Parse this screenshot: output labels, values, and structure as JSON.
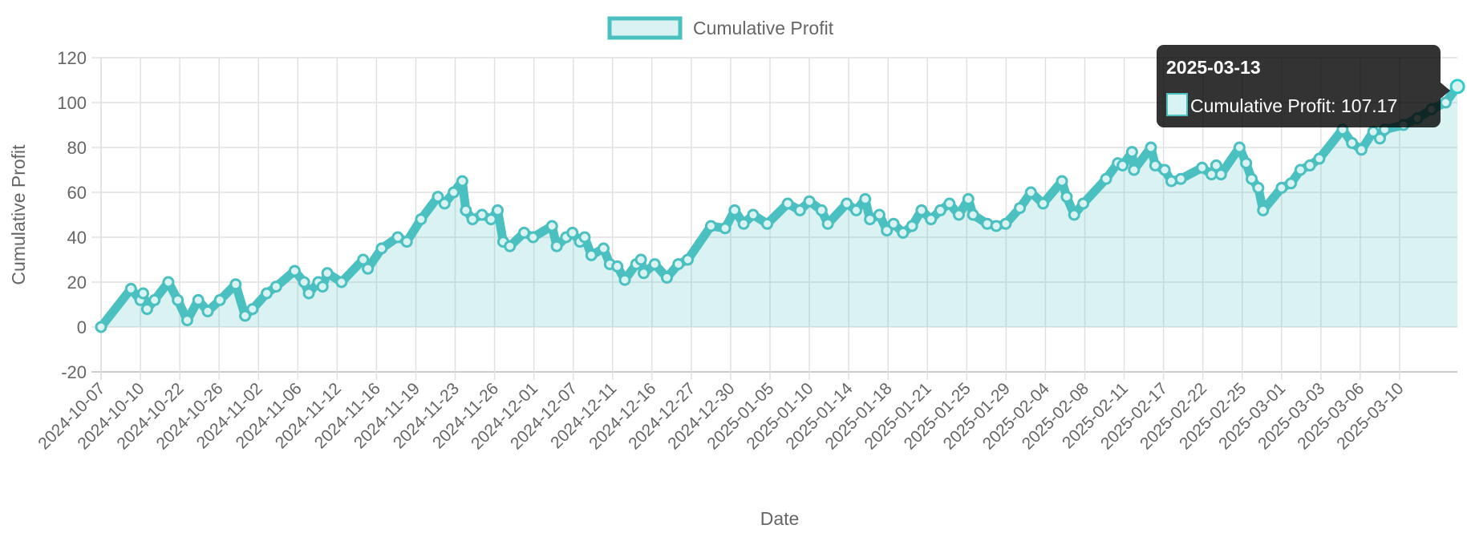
{
  "chart_data": {
    "type": "line",
    "fill": "area",
    "legend": {
      "label": "Cumulative Profit",
      "placement": "top-center"
    },
    "xlabel": "Date",
    "ylabel": "Cumulative Profit",
    "ylim": [
      -20,
      120
    ],
    "yticks": [
      -20,
      0,
      20,
      40,
      60,
      80,
      100,
      120
    ],
    "grid": true,
    "x_tick_labels": [
      "2024-10-07",
      "2024-10-10",
      "2024-10-22",
      "2024-10-26",
      "2024-11-02",
      "2024-11-06",
      "2024-11-12",
      "2024-11-16",
      "2024-11-19",
      "2024-11-23",
      "2024-11-26",
      "2024-12-01",
      "2024-12-07",
      "2024-12-11",
      "2024-12-16",
      "2024-12-27",
      "2024-12-30",
      "2025-01-05",
      "2025-01-10",
      "2025-01-14",
      "2025-01-18",
      "2025-01-21",
      "2025-01-25",
      "2025-01-29",
      "2025-02-04",
      "2025-02-08",
      "2025-02-11",
      "2025-02-17",
      "2025-02-22",
      "2025-02-25",
      "2025-03-01",
      "2025-03-03",
      "2025-03-06",
      "2025-03-10"
    ],
    "series": [
      {
        "name": "Cumulative Profit",
        "color": "#4bc0c0",
        "fill_color": "rgba(75,192,192,0.2)",
        "points_tick_index_value": [
          [
            0,
            0
          ],
          [
            0.76,
            17
          ],
          [
            1.0,
            12
          ],
          [
            1.07,
            15
          ],
          [
            1.17,
            8
          ],
          [
            1.36,
            12
          ],
          [
            1.71,
            20
          ],
          [
            1.95,
            12
          ],
          [
            2.19,
            3
          ],
          [
            2.47,
            12
          ],
          [
            2.71,
            7
          ],
          [
            3.02,
            12
          ],
          [
            3.42,
            19
          ],
          [
            3.66,
            5
          ],
          [
            3.85,
            8
          ],
          [
            4.21,
            15
          ],
          [
            4.45,
            18
          ],
          [
            4.92,
            25
          ],
          [
            5.16,
            20
          ],
          [
            5.28,
            15
          ],
          [
            5.52,
            20
          ],
          [
            5.63,
            18
          ],
          [
            5.75,
            24
          ],
          [
            6.11,
            20
          ],
          [
            6.66,
            30
          ],
          [
            6.78,
            26
          ],
          [
            7.13,
            35
          ],
          [
            7.54,
            40
          ],
          [
            7.77,
            38
          ],
          [
            8.13,
            48
          ],
          [
            8.56,
            58
          ],
          [
            8.73,
            55
          ],
          [
            8.96,
            60
          ],
          [
            9.18,
            65
          ],
          [
            9.27,
            52
          ],
          [
            9.44,
            48
          ],
          [
            9.68,
            50
          ],
          [
            9.91,
            48
          ],
          [
            10.08,
            52
          ],
          [
            10.22,
            38
          ],
          [
            10.39,
            36
          ],
          [
            10.75,
            42
          ],
          [
            10.98,
            40
          ],
          [
            11.46,
            45
          ],
          [
            11.58,
            36
          ],
          [
            11.82,
            40
          ],
          [
            11.98,
            42
          ],
          [
            12.17,
            38
          ],
          [
            12.29,
            40
          ],
          [
            12.46,
            32
          ],
          [
            12.77,
            35
          ],
          [
            12.93,
            28
          ],
          [
            13.12,
            27
          ],
          [
            13.31,
            21
          ],
          [
            13.6,
            28
          ],
          [
            13.72,
            30
          ],
          [
            13.79,
            24
          ],
          [
            14.07,
            28
          ],
          [
            14.38,
            22
          ],
          [
            14.67,
            28
          ],
          [
            14.91,
            30
          ],
          [
            15.5,
            45
          ],
          [
            15.86,
            44
          ],
          [
            16.1,
            52
          ],
          [
            16.33,
            46
          ],
          [
            16.57,
            50
          ],
          [
            16.93,
            46
          ],
          [
            17.45,
            55
          ],
          [
            17.76,
            52
          ],
          [
            18.0,
            56
          ],
          [
            18.31,
            52
          ],
          [
            18.47,
            46
          ],
          [
            18.95,
            55
          ],
          [
            19.19,
            52
          ],
          [
            19.42,
            57
          ],
          [
            19.54,
            48
          ],
          [
            19.78,
            50
          ],
          [
            19.97,
            43
          ],
          [
            20.14,
            46
          ],
          [
            20.38,
            42
          ],
          [
            20.61,
            45
          ],
          [
            20.85,
            52
          ],
          [
            21.09,
            48
          ],
          [
            21.33,
            52
          ],
          [
            21.56,
            55
          ],
          [
            21.8,
            50
          ],
          [
            22.04,
            57
          ],
          [
            22.16,
            50
          ],
          [
            22.52,
            46
          ],
          [
            22.75,
            45
          ],
          [
            22.99,
            46
          ],
          [
            23.35,
            53
          ],
          [
            23.63,
            60
          ],
          [
            23.94,
            55
          ],
          [
            24.42,
            65
          ],
          [
            24.54,
            58
          ],
          [
            24.73,
            50
          ],
          [
            24.96,
            55
          ],
          [
            25.54,
            66
          ],
          [
            25.84,
            73
          ],
          [
            25.96,
            72
          ],
          [
            26.2,
            78
          ],
          [
            26.25,
            70
          ],
          [
            26.68,
            80
          ],
          [
            26.79,
            72
          ],
          [
            27.03,
            70
          ],
          [
            27.2,
            65
          ],
          [
            27.44,
            66
          ],
          [
            27.98,
            71
          ],
          [
            28.22,
            68
          ],
          [
            28.34,
            72
          ],
          [
            28.46,
            68
          ],
          [
            28.93,
            80
          ],
          [
            29.1,
            73
          ],
          [
            29.24,
            66
          ],
          [
            29.41,
            62
          ],
          [
            29.53,
            52
          ],
          [
            30.0,
            62
          ],
          [
            30.24,
            64
          ],
          [
            30.48,
            70
          ],
          [
            30.72,
            72
          ],
          [
            30.96,
            75
          ],
          [
            31.55,
            88
          ],
          [
            31.79,
            82
          ],
          [
            32.03,
            79
          ],
          [
            32.33,
            87
          ],
          [
            32.5,
            84
          ],
          [
            32.62,
            88
          ],
          [
            33.1,
            90
          ],
          [
            33.45,
            93
          ],
          [
            33.81,
            97
          ],
          [
            34.17,
            100
          ],
          [
            34.47,
            107.17
          ]
        ]
      }
    ],
    "tooltip": {
      "title": "2025-03-13",
      "label": "Cumulative Profit: 107.17"
    }
  }
}
